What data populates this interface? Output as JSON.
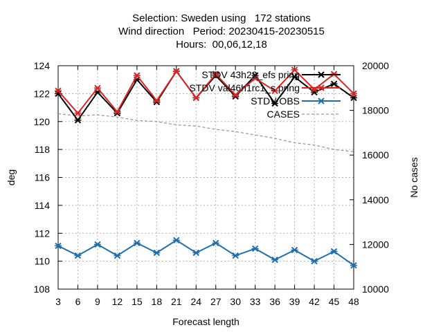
{
  "header": {
    "line1": "Selection: Sweden using   172 stations",
    "line2": "Wind direction   Period: 20230415-20230515",
    "line3": "Hours:  00,06,12,18"
  },
  "chart_data": {
    "type": "line",
    "xlabel": "Forecast length",
    "ylabel": "deg",
    "y2label": "No cases",
    "x": [
      3,
      6,
      9,
      12,
      15,
      18,
      21,
      24,
      27,
      30,
      33,
      36,
      39,
      42,
      45,
      48
    ],
    "xlim": [
      3,
      48
    ],
    "ylim": [
      108,
      124
    ],
    "y2lim": [
      10000,
      20000
    ],
    "yticks": [
      108,
      110,
      112,
      114,
      116,
      118,
      120,
      122,
      124
    ],
    "y2ticks": [
      10000,
      12000,
      14000,
      16000,
      18000,
      20000
    ],
    "grid": true,
    "legend_position": "top-right",
    "series": [
      {
        "name": "STDV 43h22_efs pring",
        "axis": "left",
        "color": "#000000",
        "marker": "x",
        "values": [
          122.0,
          120.1,
          122.1,
          120.6,
          123.0,
          121.4,
          123.6,
          121.7,
          123.3,
          121.8,
          123.3,
          121.3,
          123.2,
          122.1,
          122.7,
          121.7
        ]
      },
      {
        "name": "STDV val46h1rc1_s pring",
        "axis": "left",
        "color": "#dd2222",
        "marker": "x",
        "values": [
          122.2,
          120.6,
          122.4,
          120.7,
          123.3,
          121.5,
          123.6,
          121.7,
          123.4,
          121.9,
          123.1,
          122.2,
          123.7,
          122.3,
          123.4,
          122.0
        ]
      },
      {
        "name": "STDV OBS",
        "axis": "left",
        "color": "#1a6fb0",
        "marker": "x",
        "values": [
          111.1,
          110.4,
          111.2,
          110.4,
          111.3,
          110.6,
          111.5,
          110.6,
          111.3,
          110.4,
          110.9,
          110.1,
          110.8,
          110.0,
          110.7,
          109.7
        ]
      },
      {
        "name": "CASES",
        "axis": "right",
        "color": "#999999",
        "dashed": true,
        "values": [
          17850,
          17750,
          17800,
          17700,
          17550,
          17500,
          17350,
          17300,
          17150,
          17050,
          16900,
          16750,
          16550,
          16450,
          16250,
          16150
        ]
      }
    ]
  }
}
